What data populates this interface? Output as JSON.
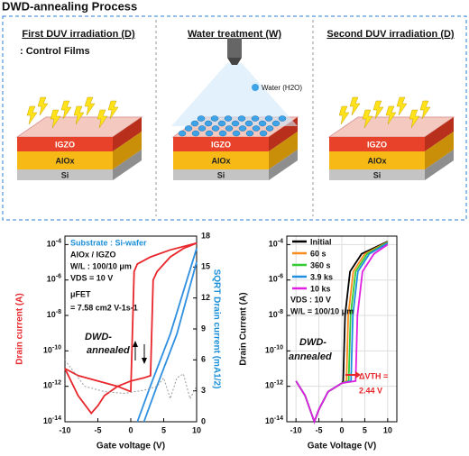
{
  "title": "DWD-annealing Process",
  "process": {
    "steps": [
      {
        "heading": "First DUV irradiation (D)",
        "note": ": Control Films",
        "layers": [
          "IGZO",
          "AlOx",
          "Si"
        ]
      },
      {
        "heading": "Water treatment (W)",
        "legend": "Water (H2O)",
        "layers": [
          "IGZO",
          "AlOx",
          "Si"
        ]
      },
      {
        "heading": "Second DUV irradiation (D)",
        "layers": [
          "IGZO",
          "AlOx",
          "Si"
        ]
      }
    ]
  },
  "chart_data": [
    {
      "type": "line",
      "xlabel": "Gate voltage (V)",
      "ylabel": "Drain current (A)",
      "y2label": "SQRT Drain current (mA1/2)",
      "log_y": true,
      "grid": false,
      "xlim": [
        -10,
        10
      ],
      "xticks": [
        -10,
        -5,
        0,
        5,
        10
      ],
      "ylim": [
        1e-14,
        0.0003
      ],
      "yticks": [
        {
          "value": 1e-14,
          "label": "10-14"
        },
        {
          "value": 1e-12,
          "label": "10-12"
        },
        {
          "value": 1e-10,
          "label": "10-10"
        },
        {
          "value": 1e-08,
          "label": "10-8"
        },
        {
          "value": 1e-06,
          "label": "10-6"
        },
        {
          "value": 0.0001,
          "label": "10-4"
        }
      ],
      "y2lim": [
        0,
        18
      ],
      "y2ticks": [
        0,
        3,
        6,
        9,
        12,
        15,
        18
      ],
      "series": [
        {
          "color": "#e8262b",
          "x": [
            -10,
            -8,
            -6,
            -5,
            -4,
            -2,
            0,
            2,
            3,
            3.4,
            4,
            6,
            8,
            10
          ],
          "values": [
            1e-11,
            3e-13,
            3e-14,
            8e-14,
            3e-13,
            1e-12,
            2e-12,
            3e-12,
            4e-12,
            1e-06,
            3e-06,
            2e-05,
            6e-05,
            0.00012
          ]
        },
        {
          "color": "#e8262b",
          "x": [
            10,
            6,
            3,
            1,
            0.5,
            0,
            -2,
            -5,
            -8,
            -10
          ],
          "values": [
            0.00012,
            5e-05,
            2e-05,
            8e-06,
            3e-06,
            5e-13,
            1e-12,
            2e-12,
            4e-12,
            1e-11
          ]
        },
        {
          "color": "#2f8fe0",
          "axis": "y2",
          "x": [
            1,
            3,
            6,
            10
          ],
          "values": [
            0,
            3.5,
            8.5,
            16.8
          ]
        },
        {
          "color": "#2f8fe0",
          "axis": "y2",
          "x": [
            2,
            4,
            7,
            10
          ],
          "values": [
            0,
            3.5,
            8.5,
            15.5
          ]
        },
        {
          "color": "#999999",
          "linestyle": "dotted",
          "x": [
            -10,
            -7,
            -4,
            -1,
            2,
            4,
            5,
            6,
            7,
            8,
            9,
            10
          ],
          "values": [
            3e-11,
            1e-12,
            5e-13,
            4e-13,
            6e-13,
            1e-12,
            3e-12,
            2e-13,
            3e-12,
            5e-12,
            2e-13,
            1e-12
          ]
        }
      ],
      "annotations": [
        "Substrate : Si-wafer",
        "AlOx / IGZO",
        "W/L : 100/10 μm",
        "VDS = 10 V",
        "μFET",
        "= 7.58 cm2 V-1s-1",
        "DWD-",
        "annealed"
      ]
    },
    {
      "type": "line",
      "xlabel": "Gate Voltage (V)",
      "ylabel": "Drain Current (A)",
      "log_y": true,
      "grid": true,
      "legend": "upper left",
      "xlim": [
        -12,
        12
      ],
      "xticks": [
        -10,
        -5,
        0,
        5,
        10
      ],
      "ylim": [
        1e-14,
        0.0003
      ],
      "yticks": [
        {
          "value": 1e-14,
          "label": "10-14"
        },
        {
          "value": 1e-12,
          "label": "10-12"
        },
        {
          "value": 1e-10,
          "label": "10-10"
        },
        {
          "value": 1e-08,
          "label": "10-8"
        },
        {
          "value": 1e-06,
          "label": "10-6"
        },
        {
          "value": 0.0001,
          "label": "10-4"
        }
      ],
      "series": [
        {
          "name": "Initial",
          "color": "#000000",
          "x": [
            -10,
            -8,
            -6,
            -5,
            -3,
            0,
            0.3,
            0.7,
            1.8,
            4.3,
            10
          ],
          "values": [
            2e-12,
            3e-13,
            1e-14,
            5e-14,
            5e-13,
            1.5e-12,
            2e-12,
            1e-08,
            3e-06,
            3e-05,
            0.00015
          ]
        },
        {
          "name": "60 s",
          "color": "#ff8c1a",
          "x": [
            -10,
            -8,
            -6,
            -5,
            -3,
            0,
            1,
            1.4,
            2.5,
            5,
            10
          ],
          "values": [
            2e-12,
            3e-13,
            1e-14,
            5e-14,
            5e-13,
            1.5e-12,
            2e-12,
            1e-08,
            3e-06,
            3e-05,
            0.00014
          ]
        },
        {
          "name": "360 s",
          "color": "#33cc33",
          "x": [
            -10,
            -8,
            -6,
            -5,
            -3,
            0,
            1.5,
            1.9,
            3,
            5.5,
            10
          ],
          "values": [
            2e-12,
            3e-13,
            1e-14,
            5e-14,
            5e-13,
            1.5e-12,
            2e-12,
            1e-08,
            3e-06,
            3e-05,
            0.00013
          ]
        },
        {
          "name": "3.9 ks",
          "color": "#1f8ee0",
          "x": [
            -10,
            -8,
            -6,
            -5,
            -3,
            0,
            2,
            2.4,
            3.5,
            6,
            10
          ],
          "values": [
            2e-12,
            3e-13,
            1e-14,
            5e-14,
            5e-13,
            1.5e-12,
            2e-12,
            1e-08,
            3e-06,
            3e-05,
            0.00012
          ]
        },
        {
          "name": "10 ks",
          "color": "#e020e0",
          "x": [
            -10,
            -8,
            -6,
            -5,
            -3,
            0,
            3,
            3.4,
            4.5,
            7,
            10
          ],
          "values": [
            2e-12,
            3e-13,
            1e-14,
            5e-14,
            5e-13,
            1.5e-12,
            2e-12,
            1e-08,
            3e-06,
            3e-05,
            0.0001
          ]
        }
      ],
      "annotations": [
        "VDS : 10 V",
        "W/L = 100/10 μm",
        "DWD-",
        "annealed",
        "ΔVTH =",
        "2.44 V"
      ]
    }
  ]
}
